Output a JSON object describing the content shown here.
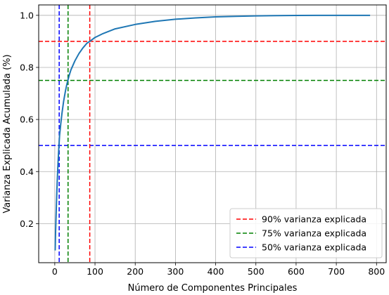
{
  "chart_data": {
    "type": "line",
    "title": "",
    "xlabel": "Número de Componentes Principales",
    "ylabel": "Varianza Explicada Acumulada (%)",
    "xlim": [
      -40,
      824
    ],
    "ylim": [
      0.05,
      1.04
    ],
    "x_ticks": [
      0,
      100,
      200,
      300,
      400,
      500,
      600,
      700,
      800
    ],
    "y_ticks": [
      0.2,
      0.4,
      0.6,
      0.8,
      1.0
    ],
    "x_tick_labels": [
      "0",
      "100",
      "200",
      "300",
      "400",
      "500",
      "600",
      "700",
      "800"
    ],
    "y_tick_labels": [
      "0.2",
      "0.4",
      "0.6",
      "0.8",
      "1.0"
    ],
    "grid": true,
    "legend_position": "bottom-right",
    "series": [
      {
        "color": "#1f77b4",
        "x": [
          1,
          2,
          4,
          6,
          8,
          10,
          12,
          15,
          18,
          22,
          26,
          30,
          35,
          40,
          50,
          60,
          70,
          80,
          87,
          100,
          120,
          150,
          200,
          250,
          300,
          350,
          400,
          450,
          500,
          550,
          600,
          650,
          700,
          750,
          784
        ],
        "y": [
          0.097,
          0.168,
          0.27,
          0.36,
          0.43,
          0.49,
          0.54,
          0.585,
          0.625,
          0.67,
          0.705,
          0.735,
          0.765,
          0.79,
          0.825,
          0.853,
          0.875,
          0.893,
          0.9,
          0.915,
          0.93,
          0.948,
          0.965,
          0.977,
          0.985,
          0.99,
          0.994,
          0.996,
          0.998,
          0.999,
          0.9995,
          0.9998,
          0.9999,
          1.0,
          1.0
        ]
      }
    ],
    "hlines": [
      {
        "y": 0.9,
        "color": "#ff0000",
        "label": "90% varianza explicada"
      },
      {
        "y": 0.75,
        "color": "#008000",
        "label": "75% varianza explicada"
      },
      {
        "y": 0.5,
        "color": "#0000ff",
        "label": "50% varianza explicada"
      }
    ],
    "vlines": [
      {
        "x": 87,
        "color": "#ff0000"
      },
      {
        "x": 33,
        "color": "#008000"
      },
      {
        "x": 11,
        "color": "#0000ff"
      }
    ]
  }
}
